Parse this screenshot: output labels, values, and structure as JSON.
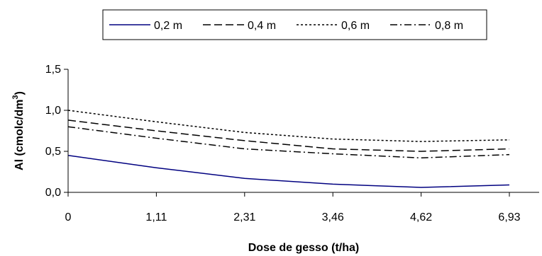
{
  "chart_data": {
    "type": "line",
    "categories": [
      "0",
      "1,11",
      "2,31",
      "3,46",
      "4,62",
      "6,93"
    ],
    "series": [
      {
        "name": "0,2 m",
        "values": [
          0.45,
          0.3,
          0.17,
          0.1,
          0.06,
          0.09
        ],
        "color": "#000080",
        "dash": "solid"
      },
      {
        "name": "0,4 m",
        "values": [
          0.88,
          0.75,
          0.63,
          0.53,
          0.5,
          0.53
        ],
        "color": "#000000",
        "dash": "dashed"
      },
      {
        "name": "0,6 m",
        "values": [
          1.0,
          0.86,
          0.73,
          0.65,
          0.62,
          0.64
        ],
        "color": "#000000",
        "dash": "dotted"
      },
      {
        "name": "0,8 m",
        "values": [
          0.8,
          0.66,
          0.53,
          0.47,
          0.42,
          0.46
        ],
        "color": "#000000",
        "dash": "dash-dot"
      }
    ],
    "yticks": [
      "0,0",
      "0,5",
      "1,0",
      "1,5"
    ],
    "ytick_values": [
      0,
      0.5,
      1.0,
      1.5
    ],
    "ylim": [
      0,
      1.5
    ],
    "xlabel": "Dose de gesso (t/ha)",
    "ylabel": "Al (cmolc/dm",
    "ylabel_superscript": "3",
    "ylabel_suffix": ")",
    "grid": false,
    "legend_position": "top"
  }
}
